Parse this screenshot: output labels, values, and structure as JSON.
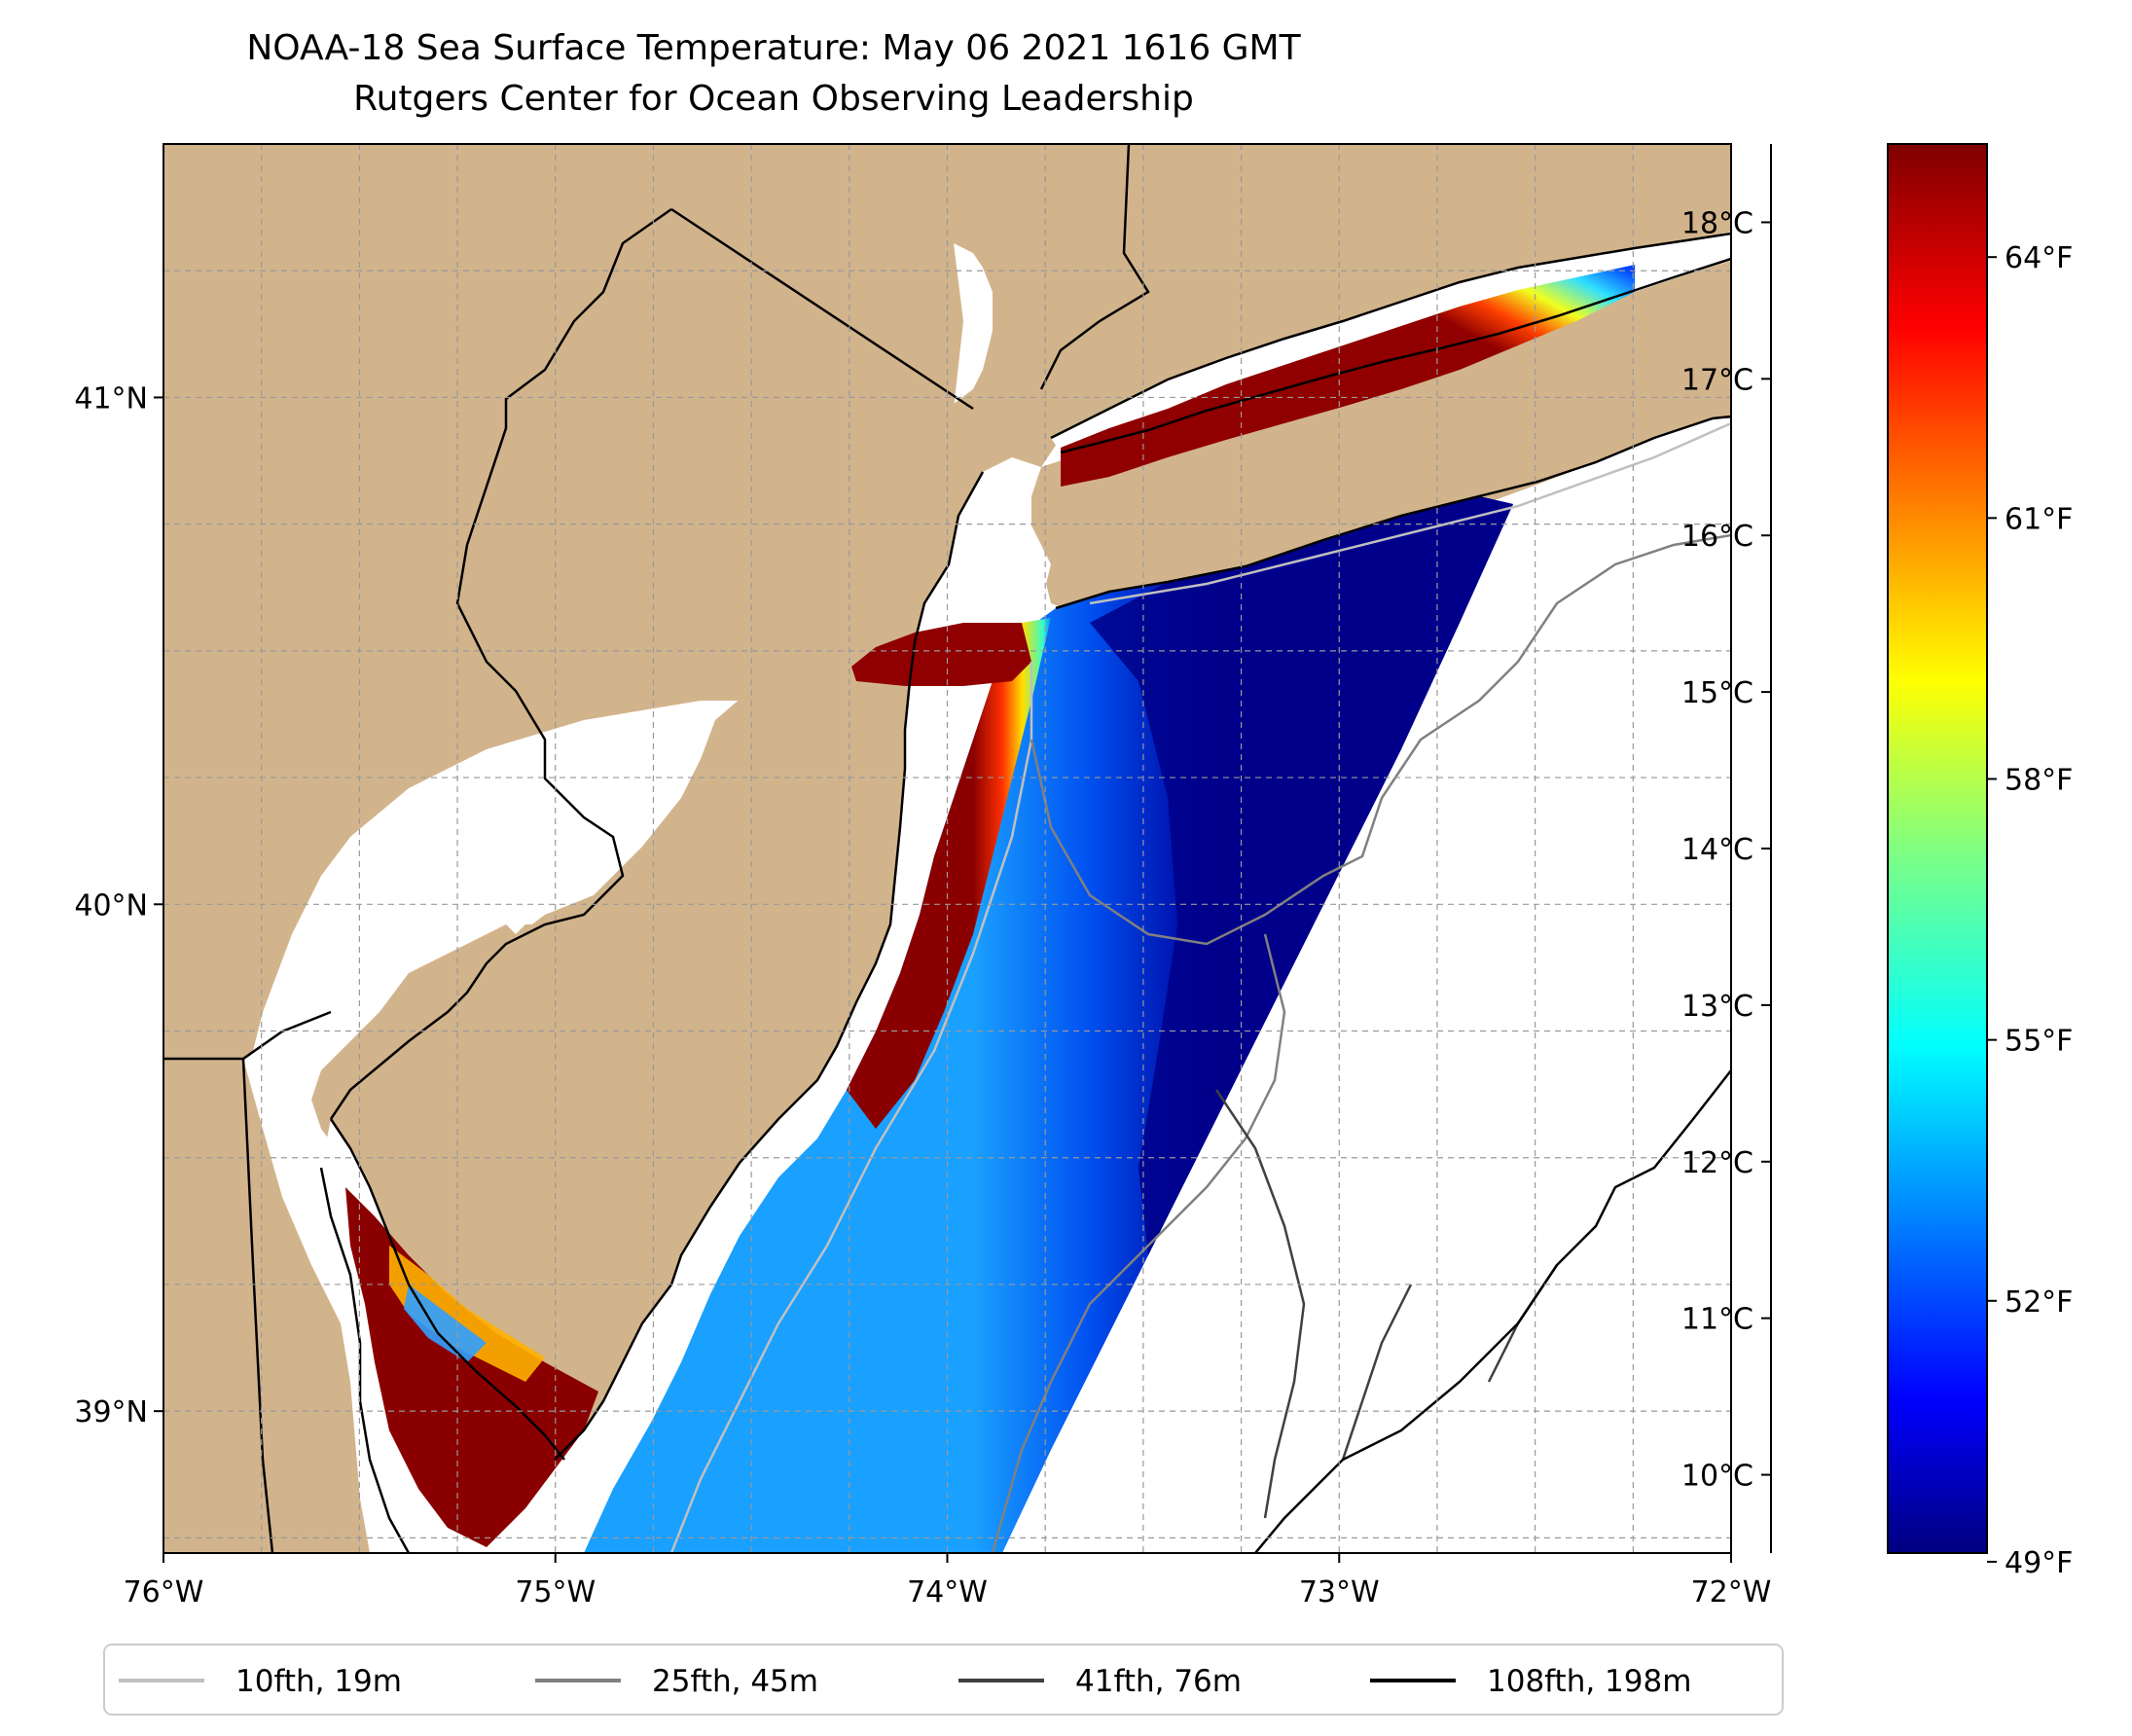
{
  "title": {
    "line1": "NOAA-18 Sea Surface Temperature: May 06 2021 1616 GMT",
    "line2": "Rutgers Center for Ocean Observing Leadership"
  },
  "map": {
    "lon_range": [
      -76,
      -72
    ],
    "lat_range": [
      38.72,
      41.5
    ],
    "lon_ticks": [
      {
        "value": -76,
        "label": "76°W"
      },
      {
        "value": -75,
        "label": "75°W"
      },
      {
        "value": -74,
        "label": "74°W"
      },
      {
        "value": -73,
        "label": "73°W"
      },
      {
        "value": -72,
        "label": "72°W"
      }
    ],
    "lat_ticks": [
      {
        "value": 39,
        "label": "39°N"
      },
      {
        "value": 40,
        "label": "40°N"
      },
      {
        "value": 41,
        "label": "41°N"
      }
    ],
    "land_color": "#d2b48c",
    "ocean_color": "#ffffff",
    "gridlines": true
  },
  "colorbar": {
    "colormap": "jet",
    "celsius_range": [
      9.5,
      18.5
    ],
    "celsius_ticks": [
      {
        "value": 10,
        "label": "10°C"
      },
      {
        "value": 11,
        "label": "11°C"
      },
      {
        "value": 12,
        "label": "12°C"
      },
      {
        "value": 13,
        "label": "13°C"
      },
      {
        "value": 14,
        "label": "14°C"
      },
      {
        "value": 15,
        "label": "15°C"
      },
      {
        "value": 16,
        "label": "16°C"
      },
      {
        "value": 17,
        "label": "17°C"
      },
      {
        "value": 18,
        "label": "18°C"
      }
    ],
    "fahrenheit_ticks": [
      {
        "value": 49,
        "label": "49°F"
      },
      {
        "value": 52,
        "label": "52°F"
      },
      {
        "value": 55,
        "label": "55°F"
      },
      {
        "value": 58,
        "label": "58°F"
      },
      {
        "value": 61,
        "label": "61°F"
      },
      {
        "value": 64,
        "label": "64°F"
      }
    ]
  },
  "legend": {
    "entries": [
      {
        "label": "10fth, 19m",
        "color": "#c0c0c0"
      },
      {
        "label": "25fth, 45m",
        "color": "#808080"
      },
      {
        "label": "41fth, 76m",
        "color": "#404040"
      },
      {
        "label": "108fth, 198m",
        "color": "#000000"
      }
    ]
  }
}
